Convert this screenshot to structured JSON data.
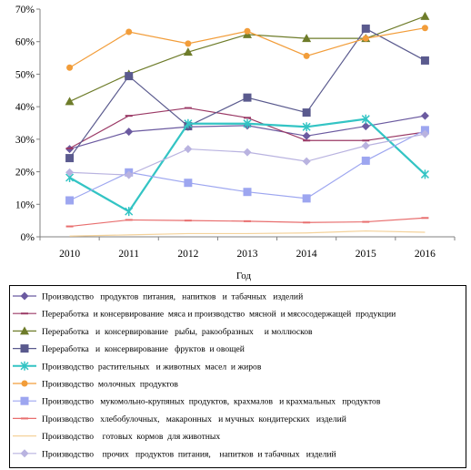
{
  "chart_data": {
    "type": "line",
    "xlabel": "Год",
    "ylabel": "",
    "ylim": [
      0,
      70
    ],
    "yticks": [
      "0%",
      "10%",
      "20%",
      "30%",
      "40%",
      "50%",
      "60%",
      "70%"
    ],
    "x": [
      "2010",
      "2011",
      "2012",
      "2013",
      "2014",
      "2015",
      "2016"
    ],
    "grid": false,
    "legend_position": "bottom",
    "series": [
      {
        "name": "Производство   продуктов  питания,   напитков   и  табачных   изделий",
        "values": [
          27,
          32.3,
          33.8,
          34.2,
          31.0,
          34.0,
          37.2
        ],
        "color": "#6b5aa0",
        "marker": "diamond"
      },
      {
        "name": "Переработка  и консервирование  мяса и производство  мясной  и мясосодержащей  продукции",
        "values": [
          27.2,
          37.2,
          39.6,
          36.6,
          29.6,
          29.6,
          32.2
        ],
        "color": "#9b3a66",
        "marker": "dash"
      },
      {
        "name": "Переработка   и  консервирование   рыбы,  ракообразных     и моллюсков",
        "values": [
          41.6,
          50.0,
          56.8,
          62.2,
          61.0,
          61.0,
          67.8
        ],
        "color": "#6e7c2a",
        "marker": "triangle"
      },
      {
        "name": "Переработка   и  консервирование   фруктов  и овощей",
        "values": [
          24.2,
          49.4,
          34.0,
          42.8,
          38.2,
          64.0,
          54.2
        ],
        "color": "#5a5a8e",
        "marker": "square"
      },
      {
        "name": "Производство  растительных   и животных  масел  и жиров",
        "values": [
          18.2,
          7.8,
          34.8,
          34.8,
          33.8,
          36.2,
          19.2
        ],
        "color": "#33c4c4",
        "marker": "star"
      },
      {
        "name": "Производство  молочных  продуктов",
        "values": [
          52.0,
          63.0,
          59.4,
          63.2,
          55.6,
          61.0,
          64.2
        ],
        "color": "#f29d3a",
        "marker": "circle"
      },
      {
        "name": "Производство   мукомольно-крупяных  продуктов,  крахмалов   и крахмальных   продуктов",
        "values": [
          11.2,
          19.8,
          16.6,
          13.8,
          11.8,
          23.4,
          32.8
        ],
        "color": "#9da6f0",
        "marker": "square"
      },
      {
        "name": "Производство   хлебобулочных,   макаронных   и мучных  кондитерских   изделий",
        "values": [
          3.2,
          5.2,
          5.0,
          4.8,
          4.4,
          4.6,
          5.8
        ],
        "color": "#e86e6e",
        "marker": "dash"
      },
      {
        "name": "Производство    готовых  кормов  для животных",
        "values": [
          0.2,
          0.6,
          1.0,
          1.0,
          1.2,
          1.8,
          1.4
        ],
        "color": "#f4d29a",
        "marker": "none"
      },
      {
        "name": "Производство    прочих   продуктов  питания,    напитков  и табачных   изделий",
        "values": [
          19.8,
          19.0,
          27.0,
          26.0,
          23.2,
          28.0,
          31.6
        ],
        "color": "#b9b3e0",
        "marker": "diamond"
      }
    ]
  }
}
